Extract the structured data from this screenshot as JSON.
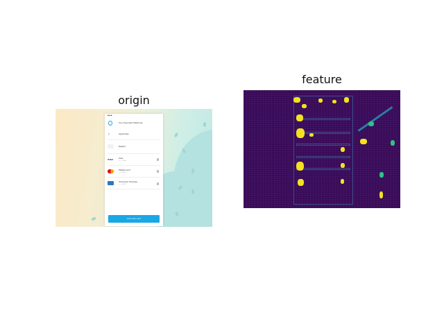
{
  "panels": {
    "origin_title": "origin",
    "feature_title": "feature"
  },
  "phone": {
    "header": "Your Payment Methods",
    "methods": [
      {
        "name": "Apple Pay",
        "sub": ""
      },
      {
        "name": "PayPal",
        "sub": ""
      },
      {
        "name": "Visa",
        "sub": "•••• 1234"
      },
      {
        "name": "Mastercard",
        "sub": "•••• 5678"
      },
      {
        "name": "American Express",
        "sub": "•••• 9012"
      }
    ],
    "button_label": "Add new card"
  },
  "colors": {
    "accent": "#1aa7e6",
    "feature_bg": "#3b0a57",
    "feature_hot": "#f5e11f",
    "feature_mid": "#2ec28a"
  }
}
